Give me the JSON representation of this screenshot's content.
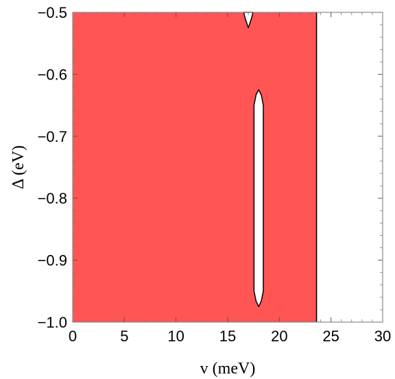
{
  "chart_data": {
    "type": "region",
    "title": "",
    "xlabel": "v (meV)",
    "ylabel": "Δ (eV)",
    "xlim": [
      0,
      30
    ],
    "ylim": [
      -1.0,
      -0.5
    ],
    "xticks": [
      0,
      5,
      10,
      15,
      20,
      25,
      30
    ],
    "xtick_labels": [
      "0",
      "5",
      "10",
      "15",
      "20",
      "25",
      "30"
    ],
    "yticks": [
      -0.5,
      -0.6,
      -0.7,
      -0.8,
      -0.9,
      -1.0
    ],
    "ytick_labels": [
      "−0.5",
      "−0.6",
      "−0.7",
      "−0.8",
      "−0.9",
      "−1.0"
    ],
    "grid": false,
    "fill_color": "#ff5555",
    "filled_region": {
      "x_range": [
        0,
        23.6
      ],
      "y_range": [
        -1.0,
        -0.5
      ]
    },
    "holes": [
      {
        "name": "top-notch",
        "outline": [
          [
            16.55,
            -0.5
          ],
          [
            16.7,
            -0.51
          ],
          [
            17.0,
            -0.525
          ],
          [
            17.3,
            -0.51
          ],
          [
            17.45,
            -0.5
          ]
        ]
      },
      {
        "name": "vertical-slit",
        "outline": [
          [
            18.0,
            -0.625
          ],
          [
            18.25,
            -0.633
          ],
          [
            18.45,
            -0.65
          ],
          [
            18.45,
            -0.95
          ],
          [
            18.25,
            -0.966
          ],
          [
            18.0,
            -0.975
          ],
          [
            17.75,
            -0.966
          ],
          [
            17.55,
            -0.95
          ],
          [
            17.55,
            -0.65
          ],
          [
            17.75,
            -0.633
          ]
        ]
      }
    ]
  }
}
